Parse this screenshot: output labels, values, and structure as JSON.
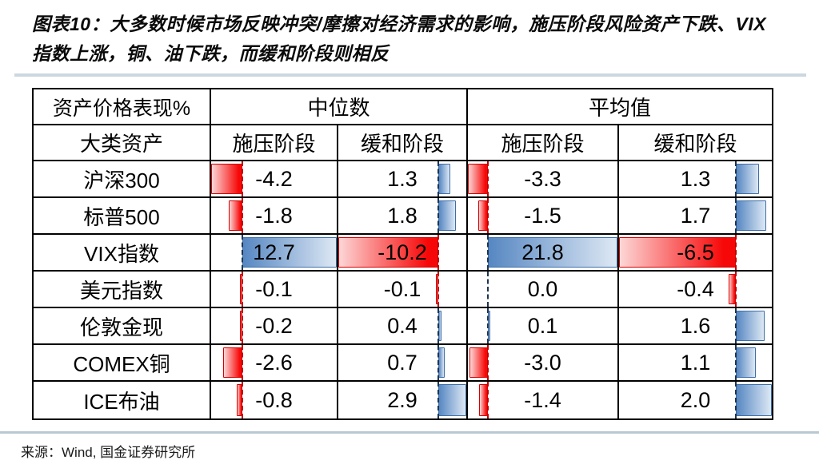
{
  "figure": {
    "tag": "图表10：",
    "title_line1": "图表10：大多数时候市场反映冲突/摩擦对经济需求的影响，施压阶段风险资产下跌、VIX",
    "title_line2": "指数上涨，铜、油下跌，而缓和阶段则相反",
    "source": "来源：Wind, 国金证券研究所"
  },
  "table": {
    "corner_header": "资产价格表现%",
    "group_headers": [
      "中位数",
      "平均值"
    ],
    "sub_headers": [
      "大类资产",
      "施压阶段",
      "缓和阶段",
      "施压阶段",
      "缓和阶段"
    ],
    "assets": [
      "沪深300",
      "标普500",
      "VIX指数",
      "美元指数",
      "伦敦金现",
      "COMEX铜",
      "ICE布油"
    ]
  },
  "chart_data": {
    "type": "table",
    "title": "大多数时候市场反映冲突/摩擦对经济需求的影响，施压阶段风险资产下跌、VIX指数上涨，铜、油下跌，而缓和阶段则相反",
    "unit": "%",
    "columns": [
      "大类资产",
      "中位数-施压阶段",
      "中位数-缓和阶段",
      "平均值-施压阶段",
      "平均值-缓和阶段"
    ],
    "rows": [
      [
        "沪深300",
        -4.2,
        1.3,
        -3.3,
        1.3
      ],
      [
        "标普500",
        -1.8,
        1.8,
        -1.5,
        1.7
      ],
      [
        "VIX指数",
        12.7,
        -10.2,
        21.8,
        -6.5
      ],
      [
        "美元指数",
        -0.1,
        -0.1,
        0.0,
        -0.4
      ],
      [
        "伦敦金现",
        -0.2,
        0.4,
        0.1,
        1.6
      ],
      [
        "COMEX铜",
        -2.6,
        0.7,
        -3.0,
        1.1
      ],
      [
        "ICE布油",
        -0.8,
        2.9,
        -1.4,
        2.0
      ]
    ],
    "data_bars": {
      "style": "excel-gradient-databar, axis auto per column, solid at axis fading outward",
      "negative_axis_note": "red bars extend left of dashed axis, blue bars extend right"
    }
  },
  "colors": {
    "bar_negative_solid": "#f70808",
    "bar_negative_light": "#fdd6d6",
    "bar_negative_border": "#d40000",
    "bar_positive_solid": "#5687c2",
    "bar_positive_light": "#dde8f4",
    "bar_positive_border": "#3d6ea8",
    "axis_negative": "#c00000",
    "axis_nonnegative": "#1f3550",
    "table_border": "#000000",
    "rule_top": "#ccd7df",
    "rule_bottom": "#b9c9d4"
  }
}
